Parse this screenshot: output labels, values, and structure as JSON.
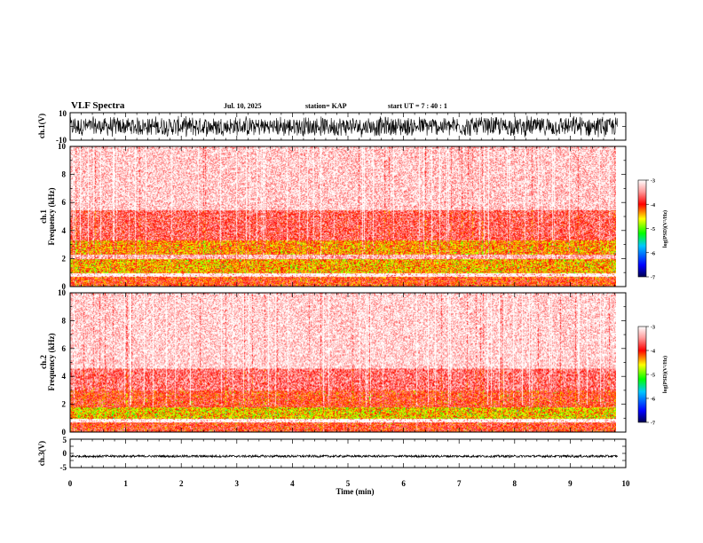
{
  "header": {
    "title": "VLF Spectra",
    "date": "Jul. 10, 2025",
    "station": "station= KAP",
    "start_time": "start UT =  7 : 40 : 1"
  },
  "chart_data": [
    {
      "type": "line",
      "name": "ch1-waveform",
      "ylabel": "ch.1(V)",
      "ylim": [
        -10,
        10
      ],
      "ytick_labels": [
        "10",
        "-10"
      ],
      "xlim": [
        0,
        10
      ],
      "data_extent_x": [
        0,
        9.85
      ],
      "typical_range": [
        -8,
        8
      ]
    },
    {
      "type": "heatmap",
      "name": "ch1-spectrogram",
      "ylabel": "ch.1\nFrequency (kHz)",
      "ylabel_line1": "ch.1",
      "ylabel_line2": "Frequency (kHz)",
      "ylim": [
        0,
        10
      ],
      "ytick_labels": [
        "0",
        "2",
        "4",
        "6",
        "8",
        "10"
      ],
      "xlim": [
        0,
        10
      ],
      "data_extent_x": [
        0,
        9.85
      ],
      "intensity_bands_khz": [
        {
          "from": 0.0,
          "to": 0.7,
          "level": -4.0
        },
        {
          "from": 1.0,
          "to": 2.0,
          "level": -4.4
        },
        {
          "from": 2.3,
          "to": 3.3,
          "level": -4.3
        },
        {
          "from": 3.3,
          "to": 5.5,
          "level": -3.7
        },
        {
          "from": 5.5,
          "to": 10.0,
          "level": -3.2
        }
      ],
      "colorbar": {
        "min": -7,
        "max": -3,
        "tick_labels": [
          "-3",
          "-4",
          "-5",
          "-6",
          "-7"
        ],
        "label": "log(PSD)(V²/Hz)"
      }
    },
    {
      "type": "heatmap",
      "name": "ch2-spectrogram",
      "ylabel": "ch.2\nFrequency (kHz)",
      "ylabel_line1": "ch.2",
      "ylabel_line2": "Frequency (kHz)",
      "ylim": [
        0,
        10
      ],
      "ytick_labels": [
        "0",
        "2",
        "4",
        "6",
        "8",
        "10"
      ],
      "xlim": [
        0,
        10
      ],
      "data_extent_x": [
        0,
        9.85
      ],
      "intensity_bands_khz": [
        {
          "from": 0.0,
          "to": 0.7,
          "level": -3.9
        },
        {
          "from": 1.0,
          "to": 1.8,
          "level": -4.5
        },
        {
          "from": 1.8,
          "to": 3.0,
          "level": -3.9
        },
        {
          "from": 3.0,
          "to": 4.6,
          "level": -3.6
        },
        {
          "from": 4.6,
          "to": 10.0,
          "level": -3.15
        }
      ],
      "colorbar": {
        "min": -7,
        "max": -3,
        "tick_labels": [
          "-3",
          "-4",
          "-5",
          "-6",
          "-7"
        ],
        "label": "log(PSD)(V²/Hz)"
      }
    },
    {
      "type": "line",
      "name": "ch3-waveform",
      "ylabel": "ch.3(V)",
      "ylim": [
        -5,
        5
      ],
      "ytick_labels": [
        "5",
        "0",
        "-5"
      ],
      "xlim": [
        0,
        10
      ],
      "data_extent_x": [
        0,
        9.85
      ],
      "typical_range": [
        -0.4,
        0.4
      ],
      "offset": -1
    }
  ],
  "x_axis": {
    "label": "Time (min)",
    "tick_labels": [
      "0",
      "1",
      "2",
      "3",
      "4",
      "5",
      "6",
      "7",
      "8",
      "9",
      "10"
    ]
  },
  "colors": {
    "background": "#ffffff",
    "trace": "#000000",
    "colormap": [
      "#000050",
      "#0000ff",
      "#00c8ff",
      "#00ff00",
      "#ffff00",
      "#ff0000",
      "#ffffff"
    ]
  }
}
